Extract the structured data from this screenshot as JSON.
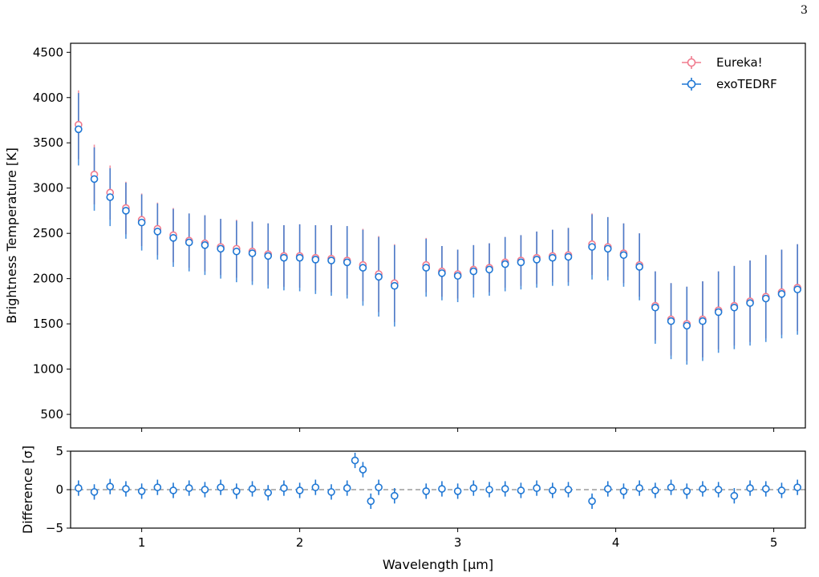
{
  "page_number": "3",
  "chart_data": [
    {
      "type": "scatter",
      "panel": "top",
      "xlabel": "",
      "ylabel": "Brightness Temperature [K]",
      "xlim": [
        0.55,
        5.2
      ],
      "ylim": [
        350,
        4600
      ],
      "yticks": [
        500,
        1000,
        1500,
        2000,
        2500,
        3000,
        3500,
        4000,
        4500
      ],
      "xticks": [
        1,
        2,
        3,
        4,
        5
      ],
      "legend": "top-right",
      "grid": false,
      "colors": {
        "Eureka!": "#f07b8e",
        "exoTEDRF": "#1f77d4",
        "marker_fill": "#ffffff"
      },
      "series": [
        {
          "name": "Eureka!",
          "x": [
            0.6,
            0.7,
            0.8,
            0.9,
            1.0,
            1.1,
            1.2,
            1.3,
            1.4,
            1.5,
            1.6,
            1.7,
            1.8,
            1.9,
            2.0,
            2.1,
            2.2,
            2.3,
            2.4,
            2.5,
            2.6,
            2.8,
            2.9,
            3.0,
            3.1,
            3.2,
            3.3,
            3.4,
            3.5,
            3.6,
            3.7,
            3.85,
            3.95,
            4.05,
            4.15,
            4.25,
            4.35,
            4.45,
            4.55,
            4.65,
            4.75,
            4.85,
            4.95,
            5.05,
            5.15
          ],
          "y": [
            3700,
            3150,
            2950,
            2780,
            2650,
            2550,
            2480,
            2420,
            2390,
            2350,
            2330,
            2300,
            2270,
            2250,
            2250,
            2230,
            2220,
            2200,
            2150,
            2050,
            1950,
            2150,
            2080,
            2050,
            2100,
            2120,
            2180,
            2200,
            2230,
            2250,
            2260,
            2380,
            2350,
            2280,
            2150,
            1700,
            1550,
            1500,
            1550,
            1650,
            1700,
            1750,
            1800,
            1850,
            1900
          ],
          "err": [
            380,
            330,
            300,
            290,
            290,
            290,
            300,
            300,
            310,
            310,
            320,
            330,
            340,
            340,
            350,
            360,
            370,
            380,
            400,
            420,
            430,
            300,
            280,
            270,
            270,
            270,
            280,
            280,
            290,
            290,
            300,
            340,
            330,
            330,
            350,
            380,
            400,
            410,
            420,
            430,
            440,
            450,
            460,
            470,
            480
          ]
        },
        {
          "name": "exoTEDRF",
          "x": [
            0.6,
            0.7,
            0.8,
            0.9,
            1.0,
            1.1,
            1.2,
            1.3,
            1.4,
            1.5,
            1.6,
            1.7,
            1.8,
            1.9,
            2.0,
            2.1,
            2.2,
            2.3,
            2.4,
            2.5,
            2.6,
            2.8,
            2.9,
            3.0,
            3.1,
            3.2,
            3.3,
            3.4,
            3.5,
            3.6,
            3.7,
            3.85,
            3.95,
            4.05,
            4.15,
            4.25,
            4.35,
            4.45,
            4.55,
            4.65,
            4.75,
            4.85,
            4.95,
            5.05,
            5.15
          ],
          "y": [
            3650,
            3100,
            2900,
            2750,
            2620,
            2520,
            2450,
            2400,
            2370,
            2330,
            2300,
            2280,
            2250,
            2230,
            2230,
            2210,
            2200,
            2180,
            2120,
            2020,
            1920,
            2120,
            2060,
            2030,
            2080,
            2100,
            2160,
            2180,
            2210,
            2230,
            2240,
            2350,
            2330,
            2260,
            2130,
            1680,
            1530,
            1480,
            1530,
            1630,
            1680,
            1730,
            1780,
            1830,
            1880
          ],
          "err": [
            400,
            350,
            320,
            310,
            310,
            310,
            320,
            320,
            330,
            330,
            340,
            350,
            360,
            360,
            370,
            380,
            390,
            400,
            420,
            440,
            450,
            320,
            300,
            290,
            290,
            290,
            300,
            300,
            310,
            310,
            320,
            360,
            350,
            350,
            370,
            400,
            420,
            430,
            440,
            450,
            460,
            470,
            480,
            490,
            500
          ]
        }
      ]
    },
    {
      "type": "scatter",
      "panel": "bottom",
      "xlabel": "Wavelength [µm]",
      "ylabel": "Difference [σ]",
      "xlim": [
        0.55,
        5.2
      ],
      "ylim": [
        -5,
        5
      ],
      "yticks": [
        -5,
        0,
        5
      ],
      "xticks": [
        1,
        2,
        3,
        4,
        5
      ],
      "reference_line": 0,
      "colors": {
        "points": "#1f77d4",
        "reference_line": "#888888"
      },
      "series": [
        {
          "name": "",
          "x": [
            0.6,
            0.7,
            0.8,
            0.9,
            1.0,
            1.1,
            1.2,
            1.3,
            1.4,
            1.5,
            1.6,
            1.7,
            1.8,
            1.9,
            2.0,
            2.1,
            2.2,
            2.3,
            2.35,
            2.4,
            2.45,
            2.5,
            2.6,
            2.8,
            2.9,
            3.0,
            3.1,
            3.2,
            3.3,
            3.4,
            3.5,
            3.6,
            3.7,
            3.85,
            3.95,
            4.05,
            4.15,
            4.25,
            4.35,
            4.45,
            4.55,
            4.65,
            4.75,
            4.85,
            4.95,
            5.05,
            5.15
          ],
          "y": [
            0.2,
            -0.3,
            0.4,
            0.1,
            -0.2,
            0.3,
            -0.1,
            0.2,
            0.0,
            0.3,
            -0.2,
            0.1,
            -0.4,
            0.2,
            -0.1,
            0.3,
            -0.3,
            0.2,
            3.8,
            2.6,
            -1.5,
            0.3,
            -0.8,
            -0.2,
            0.1,
            -0.2,
            0.2,
            0.0,
            0.1,
            -0.1,
            0.2,
            -0.1,
            0.0,
            -1.5,
            0.1,
            -0.2,
            0.2,
            -0.1,
            0.3,
            -0.2,
            0.1,
            0.0,
            -0.8,
            0.2,
            0.1,
            -0.1,
            0.3
          ],
          "err": [
            1.0,
            1.0,
            1.0,
            1.0,
            1.0,
            1.0,
            1.0,
            1.0,
            1.0,
            1.0,
            1.0,
            1.0,
            1.0,
            1.0,
            1.0,
            1.0,
            1.0,
            1.0,
            1.0,
            1.0,
            1.0,
            1.0,
            1.0,
            1.0,
            1.0,
            1.0,
            1.0,
            1.0,
            1.0,
            1.0,
            1.0,
            1.0,
            1.0,
            1.0,
            1.0,
            1.0,
            1.0,
            1.0,
            1.0,
            1.0,
            1.0,
            1.0,
            1.0,
            1.0,
            1.0,
            1.0,
            1.0
          ]
        }
      ]
    }
  ],
  "legend_items": [
    {
      "label": "Eureka!",
      "color": "#f07b8e"
    },
    {
      "label": "exoTEDRF",
      "color": "#1f77d4"
    }
  ]
}
